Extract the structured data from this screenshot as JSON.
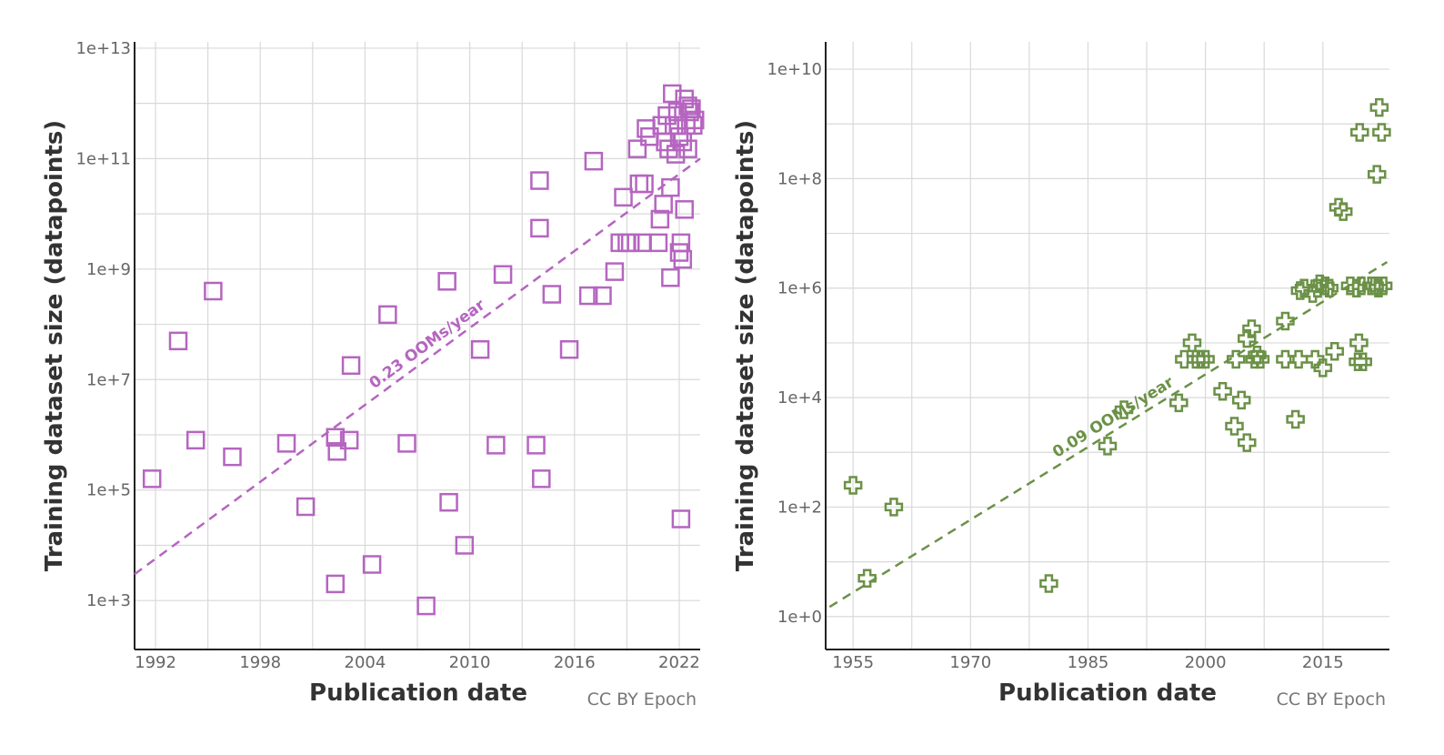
{
  "colors": {
    "left_series": "#b565c0",
    "right_series": "#6b9147"
  },
  "chart_data": [
    {
      "type": "scatter",
      "xlabel": "Publication date",
      "ylabel": "Training dataset size (datapoints)",
      "credit": "CC BY Epoch",
      "y_scale": "log",
      "xlim": [
        1990.8,
        2023.2
      ],
      "ylim": [
        130.0,
        13000000000000.0
      ],
      "x_ticks": [
        1992,
        1998,
        2004,
        2010,
        2016,
        2022
      ],
      "x_tick_labels": [
        "1992",
        "1998",
        "2004",
        "2010",
        "2016",
        "2022"
      ],
      "y_ticks": [
        1000.0,
        100000.0,
        10000000.0,
        1000000000.0,
        100000000000.0,
        10000000000000.0
      ],
      "y_tick_labels": [
        "1e+3",
        "1e+5",
        "1e+7",
        "1e+9",
        "1e+11",
        "1e+13"
      ],
      "grid": true,
      "marker": "square",
      "trend": {
        "label": "0.23 OOMs/year",
        "points": [
          [
            1990.8,
            3000
          ],
          [
            2023.2,
            100000000000.0
          ]
        ]
      },
      "points": [
        [
          1991.8,
          160000.0
        ],
        [
          1993.3,
          50000000.0
        ],
        [
          1994.3,
          800000.0
        ],
        [
          1995.3,
          400000000.0
        ],
        [
          1996.4,
          400000.0
        ],
        [
          1999.5,
          700000.0
        ],
        [
          2000.6,
          50000.0
        ],
        [
          2002.3,
          900000.0
        ],
        [
          2002.4,
          500000.0
        ],
        [
          2002.3,
          2000.0
        ],
        [
          2003.1,
          800000.0
        ],
        [
          2003.2,
          18000000.0
        ],
        [
          2004.4,
          4500.0
        ],
        [
          2005.3,
          150000000.0
        ],
        [
          2006.4,
          700000.0
        ],
        [
          2007.5,
          800
        ],
        [
          2008.7,
          600000000.0
        ],
        [
          2008.8,
          60000.0
        ],
        [
          2009.7,
          10000.0
        ],
        [
          2010.6,
          35000000.0
        ],
        [
          2011.5,
          650000.0
        ],
        [
          2011.9,
          800000000.0
        ],
        [
          2013.8,
          650000.0
        ],
        [
          2014.0,
          40000000000.0
        ],
        [
          2014.0,
          5500000000.0
        ],
        [
          2014.1,
          160000.0
        ],
        [
          2014.7,
          350000000.0
        ],
        [
          2015.7,
          35000000.0
        ],
        [
          2016.8,
          330000000.0
        ],
        [
          2017.1,
          90000000000.0
        ],
        [
          2017.6,
          330000000.0
        ],
        [
          2018.3,
          900000000.0
        ],
        [
          2018.6,
          3000000000.0
        ],
        [
          2018.8,
          20000000000.0
        ],
        [
          2019.0,
          3000000000.0
        ],
        [
          2019.2,
          3000000000.0
        ],
        [
          2019.6,
          150000000000.0
        ],
        [
          2019.7,
          35000000000.0
        ],
        [
          2019.9,
          3000000000.0
        ],
        [
          2020.0,
          35000000000.0
        ],
        [
          2020.1,
          350000000000.0
        ],
        [
          2020.3,
          250000000000.0
        ],
        [
          2020.8,
          3000000000.0
        ],
        [
          2020.9,
          8000000000.0
        ],
        [
          2021.0,
          400000000000.0
        ],
        [
          2021.1,
          15000000000.0
        ],
        [
          2021.2,
          200000000000.0
        ],
        [
          2021.3,
          600000000000.0
        ],
        [
          2021.4,
          150000000000.0
        ],
        [
          2021.5,
          30000000000.0
        ],
        [
          2021.5,
          700000000.0
        ],
        [
          2021.6,
          1500000000000.0
        ],
        [
          2021.7,
          400000000000.0
        ],
        [
          2021.8,
          120000000000.0
        ],
        [
          2021.9,
          700000000000.0
        ],
        [
          2022.0,
          250000000000.0
        ],
        [
          2022.0,
          2000000000.0
        ],
        [
          2022.1,
          3000000000.0
        ],
        [
          2022.1,
          30000.0
        ],
        [
          2022.2,
          1500000000.0
        ],
        [
          2022.2,
          200000000000.0
        ],
        [
          2022.3,
          1200000000000.0
        ],
        [
          2022.3,
          12000000000.0
        ],
        [
          2022.4,
          400000000000.0
        ],
        [
          2022.5,
          150000000000.0
        ],
        [
          2022.6,
          700000000000.0
        ],
        [
          2022.7,
          800000000000.0
        ],
        [
          2022.8,
          400000000000.0
        ],
        [
          2022.9,
          500000000000.0
        ],
        [
          2022.5,
          900000000000.0
        ]
      ]
    },
    {
      "type": "scatter",
      "xlabel": "Publication date",
      "ylabel": "Training dataset size (datapoints)",
      "credit": "CC BY Epoch",
      "y_scale": "log",
      "xlim": [
        1951.5,
        2023.5
      ],
      "ylim": [
        0.25,
        31600000000.0
      ],
      "x_ticks": [
        1955,
        1970,
        1985,
        2000,
        2015
      ],
      "x_tick_labels": [
        "1955",
        "1970",
        "1985",
        "2000",
        "2015"
      ],
      "y_ticks": [
        1,
        100,
        10000.0,
        1000000.0,
        100000000.0,
        10000000000.0
      ],
      "y_tick_labels": [
        "1e+0",
        "1e+2",
        "1e+4",
        "1e+6",
        "1e+8",
        "1e+10"
      ],
      "grid": true,
      "marker": "plus",
      "trend": {
        "label": "0.09 OOMs/year",
        "points": [
          [
            1952.0,
            1.5
          ],
          [
            2023.2,
            3000000.0
          ]
        ]
      },
      "points": [
        [
          1955.0,
          250
        ],
        [
          1956.8,
          5
        ],
        [
          1960.2,
          100
        ],
        [
          1980.0,
          4
        ],
        [
          1987.5,
          1300.0
        ],
        [
          1989.6,
          6000.0
        ],
        [
          1996.6,
          8000.0
        ],
        [
          1997.3,
          50000.0
        ],
        [
          1998.3,
          100000.0
        ],
        [
          1998.8,
          50000.0
        ],
        [
          1999.4,
          50000.0
        ],
        [
          2000.0,
          50000.0
        ],
        [
          2002.2,
          13000.0
        ],
        [
          2003.7,
          3000.0
        ],
        [
          2003.9,
          50000.0
        ],
        [
          2004.6,
          9000.0
        ],
        [
          2005.3,
          1500.0
        ],
        [
          2005.3,
          120000.0
        ],
        [
          2005.9,
          180000.0
        ],
        [
          2006.3,
          50000.0
        ],
        [
          2006.6,
          60000.0
        ],
        [
          2007.0,
          50000.0
        ],
        [
          2010.2,
          250000.0
        ],
        [
          2010.2,
          50000.0
        ],
        [
          2011.5,
          4000.0
        ],
        [
          2011.9,
          50000.0
        ],
        [
          2012.1,
          900000.0
        ],
        [
          2012.6,
          1000000.0
        ],
        [
          2013.7,
          800000.0
        ],
        [
          2014.0,
          50000.0
        ],
        [
          2014.3,
          1000000.0
        ],
        [
          2014.6,
          1200000.0
        ],
        [
          2015.0,
          35000.0
        ],
        [
          2015.3,
          1100000.0
        ],
        [
          2015.8,
          1000000.0
        ],
        [
          2016.5,
          70000.0
        ],
        [
          2017.0,
          30000000.0
        ],
        [
          2017.6,
          25000000.0
        ],
        [
          2018.5,
          1100000.0
        ],
        [
          2019.3,
          1000000.0
        ],
        [
          2019.5,
          45000.0
        ],
        [
          2019.6,
          100000.0
        ],
        [
          2019.7,
          700000000.0
        ],
        [
          2019.9,
          1100000.0
        ],
        [
          2020.1,
          45000.0
        ],
        [
          2021.2,
          1100000.0
        ],
        [
          2021.6,
          1100000.0
        ],
        [
          2021.9,
          120000000.0
        ],
        [
          2022.1,
          1000000.0
        ],
        [
          2022.2,
          2000000000.0
        ],
        [
          2022.5,
          700000000.0
        ],
        [
          2022.7,
          1100000.0
        ]
      ]
    }
  ]
}
